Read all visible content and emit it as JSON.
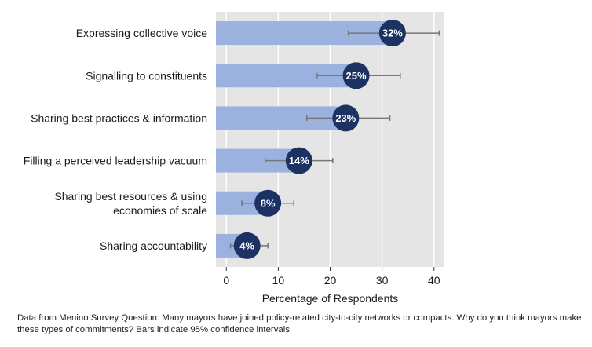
{
  "chart_data": {
    "type": "bar",
    "orientation": "horizontal",
    "categories": [
      "Expressing collective voice",
      "Signalling to constituents",
      "Sharing best practices & information",
      "Filling a perceived leadership vacuum",
      "Sharing best resources & using\neconomies of scale",
      "Sharing accountability"
    ],
    "values": [
      32,
      25,
      23,
      14,
      8,
      4
    ],
    "value_labels": [
      "32%",
      "25%",
      "23%",
      "14%",
      "8%",
      "4%"
    ],
    "ci_low": [
      23.5,
      17.5,
      15.5,
      7.5,
      3,
      0.8
    ],
    "ci_high": [
      41,
      33.5,
      31.5,
      20.5,
      13,
      8
    ],
    "xlabel": "Percentage of Respondents",
    "xticks": [
      0,
      10,
      20,
      30,
      40
    ],
    "xlim": [
      -2,
      42
    ],
    "grid": "vertical",
    "colors": {
      "bar": "#9bb2de",
      "marker": "#1b3262",
      "plot_bg": "#e5e5e5",
      "gridline": "#ffffff",
      "errorbar": "#777777"
    }
  },
  "caption": "Data from Menino Survey Question: Many mayors have joined policy-related city-to-city networks or compacts. Why do you think mayors make these types of commitments? Bars indicate 95% confidence intervals."
}
